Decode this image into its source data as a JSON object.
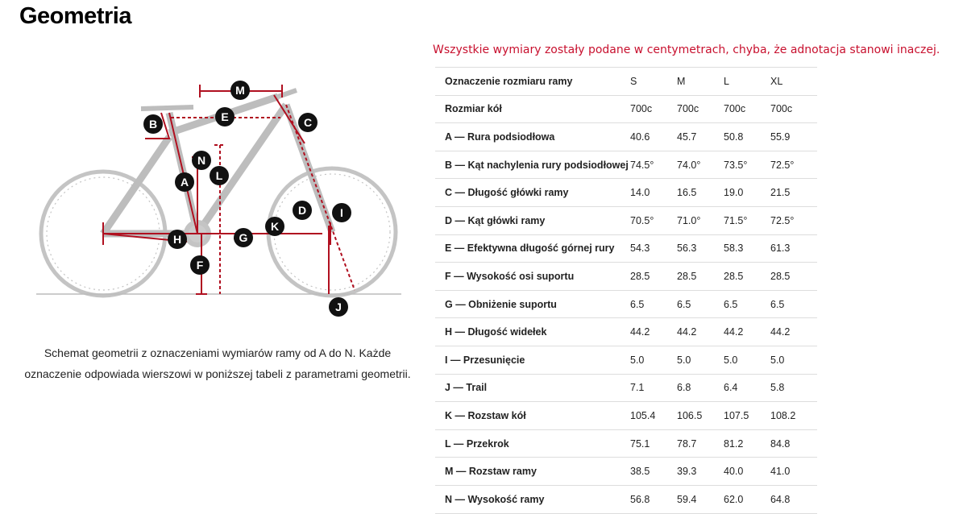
{
  "header": {
    "title": "Geometria"
  },
  "note": "Wszystkie wymiary zostały podane w centymetrach, chyba, że adnotacja stanowi inaczej.",
  "diagram": {
    "labels": [
      "M",
      "E",
      "B",
      "C",
      "N",
      "L",
      "A",
      "D",
      "I",
      "K",
      "H",
      "G",
      "F",
      "J"
    ],
    "caption": "Schemat geometrii z oznaczeniami wymiarów ramy od A do N. Każde oznaczenie odpowiada wierszowi w poniższej tabeli z parametrami geometrii."
  },
  "table": {
    "header": [
      "Oznaczenie rozmiaru ramy",
      "S",
      "M",
      "L",
      "XL"
    ],
    "rows": [
      [
        "Rozmiar kół",
        "700c",
        "700c",
        "700c",
        "700c"
      ],
      [
        "A — Rura podsiodłowa",
        "40.6",
        "45.7",
        "50.8",
        "55.9"
      ],
      [
        "B — Kąt nachylenia rury podsiodłowej",
        "74.5°",
        "74.0°",
        "73.5°",
        "72.5°"
      ],
      [
        "C — Długość główki ramy",
        "14.0",
        "16.5",
        "19.0",
        "21.5"
      ],
      [
        "D — Kąt główki ramy",
        "70.5°",
        "71.0°",
        "71.5°",
        "72.5°"
      ],
      [
        "E — Efektywna długość górnej rury",
        "54.3",
        "56.3",
        "58.3",
        "61.3"
      ],
      [
        "F — Wysokość osi suportu",
        "28.5",
        "28.5",
        "28.5",
        "28.5"
      ],
      [
        "G — Obniżenie suportu",
        "6.5",
        "6.5",
        "6.5",
        "6.5"
      ],
      [
        "H — Długość widełek",
        "44.2",
        "44.2",
        "44.2",
        "44.2"
      ],
      [
        "I — Przesunięcie",
        "5.0",
        "5.0",
        "5.0",
        "5.0"
      ],
      [
        "J — Trail",
        "7.1",
        "6.8",
        "6.4",
        "5.8"
      ],
      [
        "K — Rozstaw kół",
        "105.4",
        "106.5",
        "107.5",
        "108.2"
      ],
      [
        "L — Przekrok",
        "75.1",
        "78.7",
        "81.2",
        "84.8"
      ],
      [
        "M — Rozstaw ramy",
        "38.5",
        "39.3",
        "40.0",
        "41.0"
      ],
      [
        "N — Wysokość ramy",
        "56.8",
        "59.4",
        "62.0",
        "64.8"
      ]
    ]
  }
}
